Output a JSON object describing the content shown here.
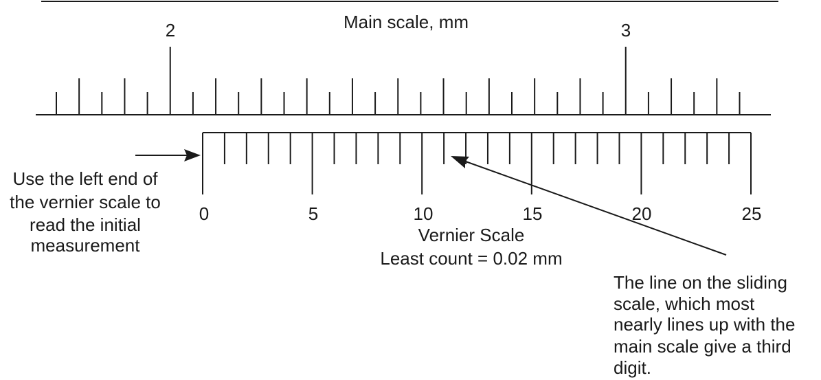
{
  "main_scale": {
    "title": "Main scale, mm",
    "labels": [
      "2",
      "3"
    ]
  },
  "vernier_scale": {
    "labels": [
      "0",
      "5",
      "10",
      "15",
      "20",
      "25"
    ],
    "title": "Vernier Scale",
    "least_count": "Least count = 0.02 mm"
  },
  "annotations": {
    "left": [
      "Use the left end of",
      "the vernier scale to",
      "read the initial",
      "measurement"
    ],
    "right": [
      "The line on the sliding",
      "scale, which most",
      "nearly  lines up with the",
      "main scale give a third",
      "digit."
    ]
  },
  "colors": {
    "ink": "#1a1a1a",
    "background": "#ffffff"
  }
}
